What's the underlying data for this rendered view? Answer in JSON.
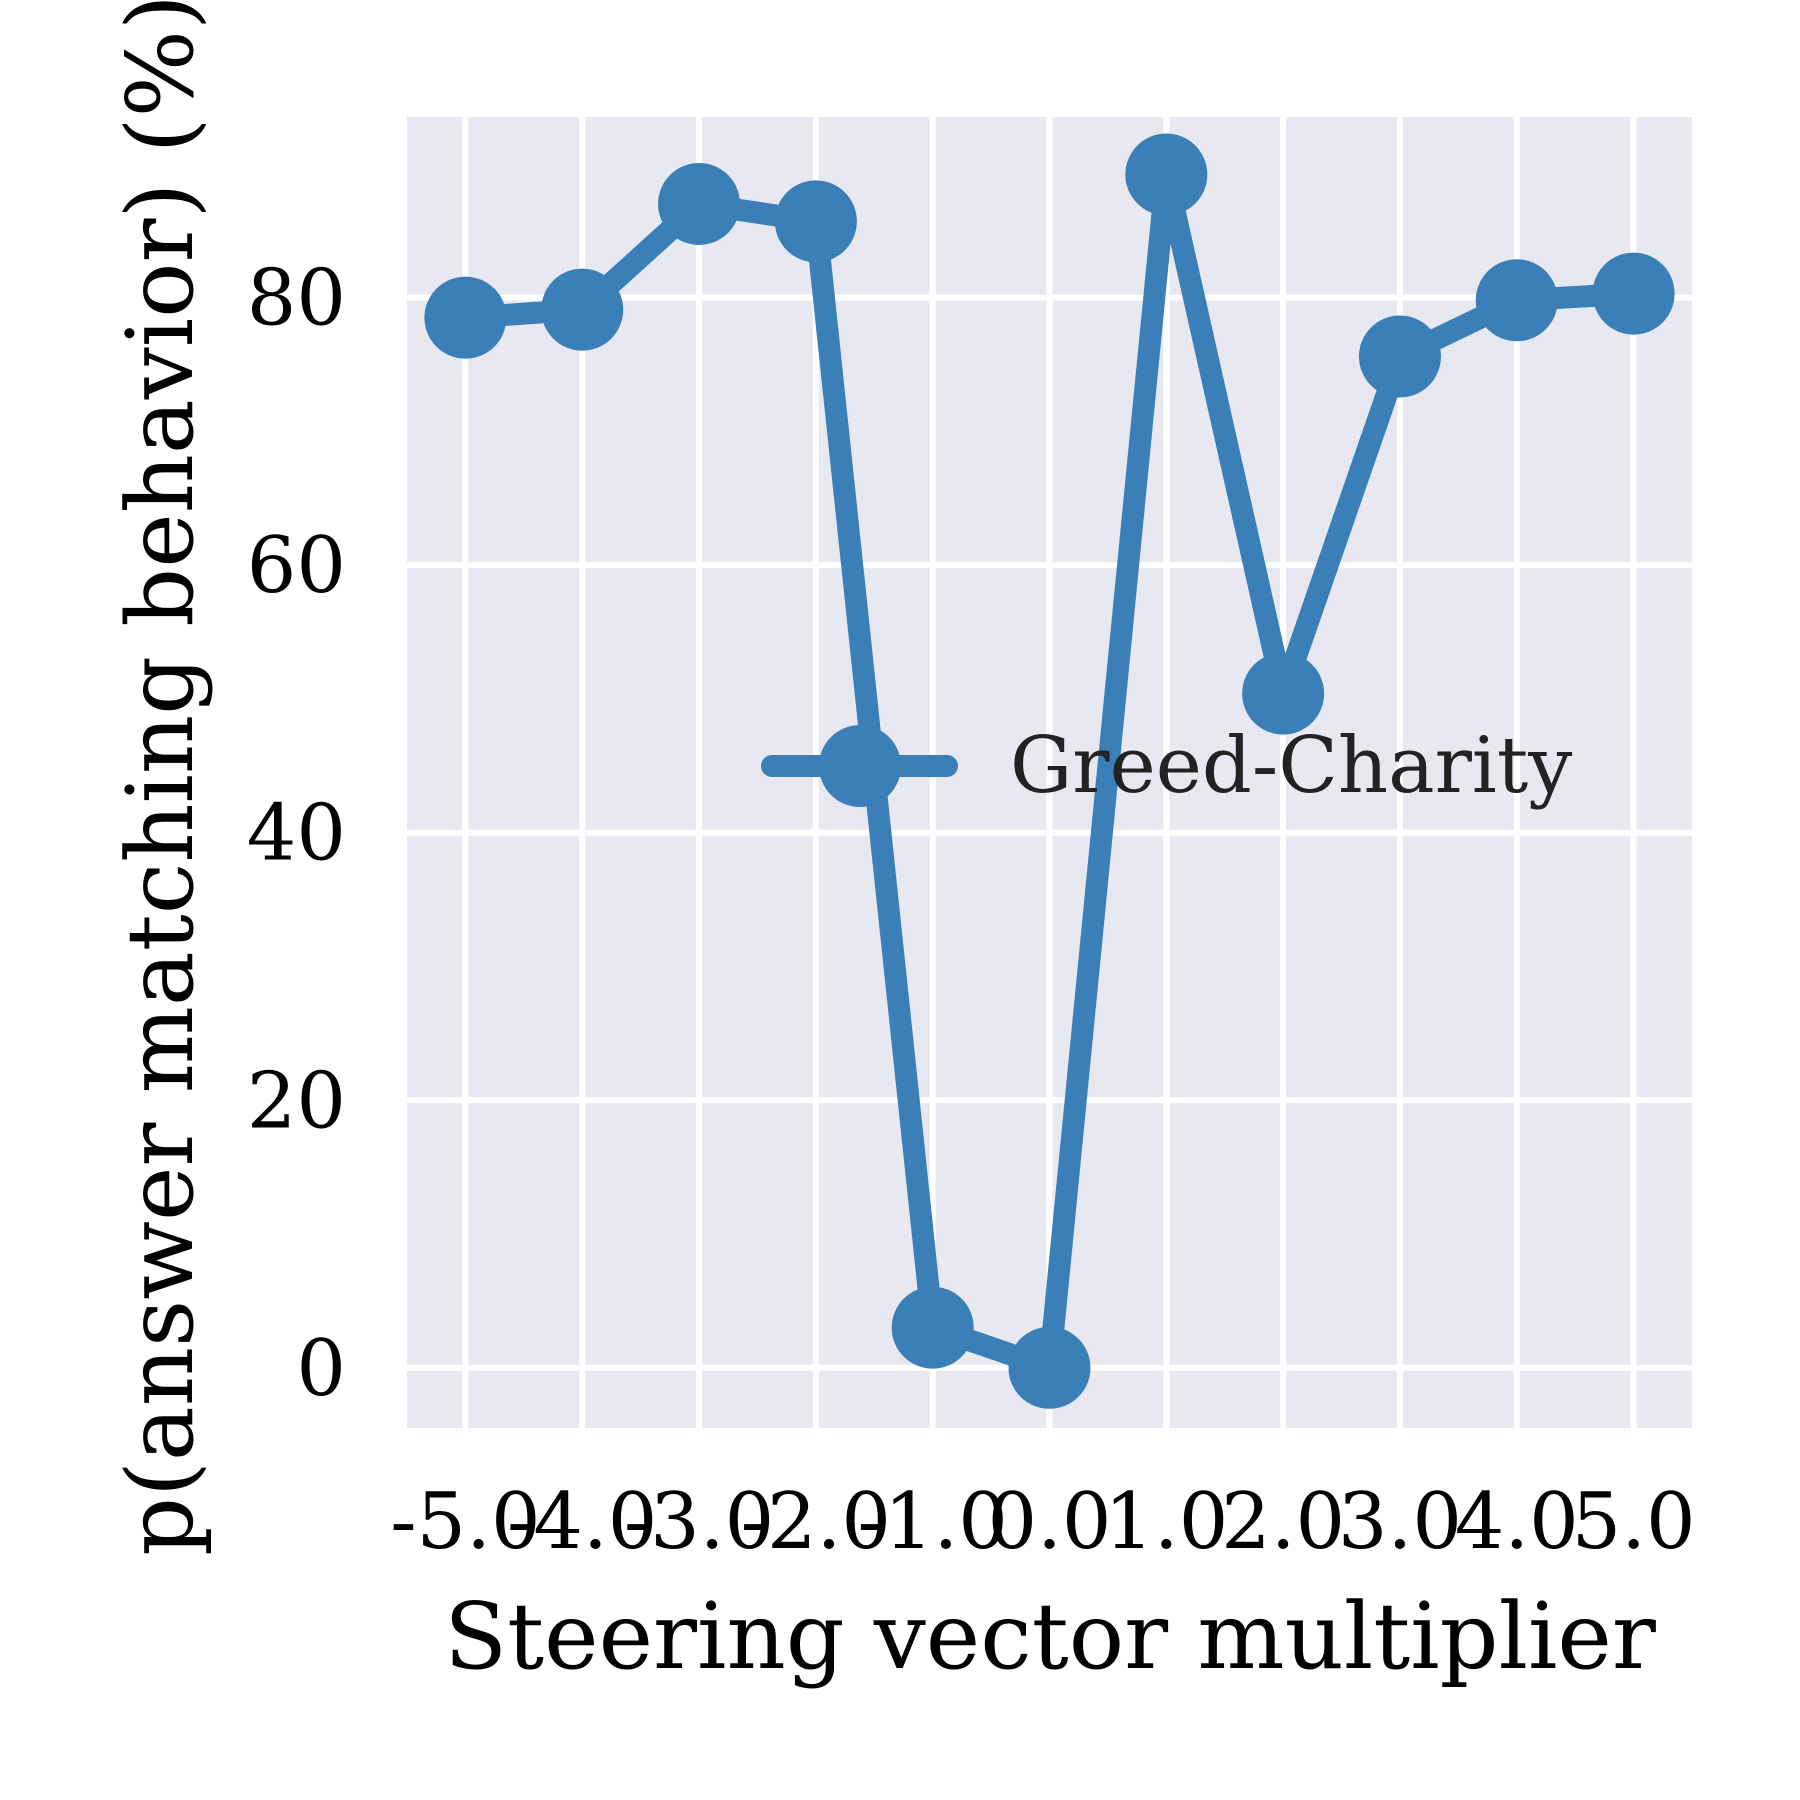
{
  "chart_data": {
    "type": "line",
    "xlabel": "Steering vector multiplier",
    "ylabel": "p(answer matching behavior) (%)",
    "x_tick_labels": [
      "-5.0",
      "-4.0",
      "-3.0",
      "-2.0",
      "-1.0",
      "0.0",
      "1.0",
      "2.0",
      "3.0",
      "4.0",
      "5.0"
    ],
    "y_tick_labels": [
      "0",
      "20",
      "40",
      "60",
      "80"
    ],
    "x": [
      -5,
      -4,
      -3,
      -2,
      -1,
      0,
      1,
      2,
      3,
      4,
      5
    ],
    "xlim": [
      -5.5,
      5.5
    ],
    "ylim": [
      -4.5,
      93.5
    ],
    "grid": true,
    "legend_position": "center-right",
    "background_color": "#e8e8f0",
    "grid_color": "#ffffff",
    "series": [
      {
        "name": "Greed-Charity",
        "color": "#3a7fb8",
        "marker": "circle",
        "values": [
          78.5,
          79.1,
          87.0,
          85.7,
          3.0,
          0.0,
          89.2,
          50.4,
          75.6,
          79.8,
          80.3
        ]
      }
    ]
  }
}
